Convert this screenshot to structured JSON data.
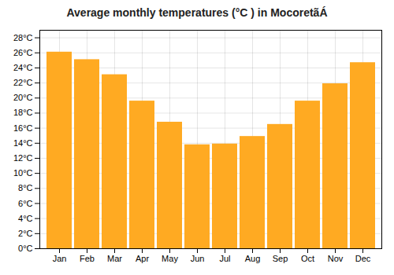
{
  "chart_data": {
    "type": "bar",
    "title": "Average monthly temperatures (°C ) in MocoretãÁ",
    "categories": [
      "Jan",
      "Feb",
      "Mar",
      "Apr",
      "May",
      "Jun",
      "Jul",
      "Aug",
      "Sep",
      "Oct",
      "Nov",
      "Dec"
    ],
    "values": [
      26.1,
      25.1,
      23.1,
      19.6,
      16.8,
      13.8,
      13.9,
      14.9,
      16.5,
      19.6,
      21.9,
      24.7
    ],
    "color": "#FFAA22",
    "ylim": [
      0,
      29
    ],
    "yticks": [
      {
        "value": 0,
        "label": "0°C"
      },
      {
        "value": 2,
        "label": "2°C"
      },
      {
        "value": 4,
        "label": "4°C"
      },
      {
        "value": 6,
        "label": "6°C"
      },
      {
        "value": 8,
        "label": "8°C"
      },
      {
        "value": 10,
        "label": "10°C"
      },
      {
        "value": 12,
        "label": "12°C"
      },
      {
        "value": 14,
        "label": "14°C"
      },
      {
        "value": 16,
        "label": "16°C"
      },
      {
        "value": 18,
        "label": "18°C"
      },
      {
        "value": 20,
        "label": "20°C"
      },
      {
        "value": 22,
        "label": "22°C"
      },
      {
        "value": 24,
        "label": "24°C"
      },
      {
        "value": 26,
        "label": "26°C"
      },
      {
        "value": 28,
        "label": "28°C"
      }
    ],
    "grid": true
  }
}
